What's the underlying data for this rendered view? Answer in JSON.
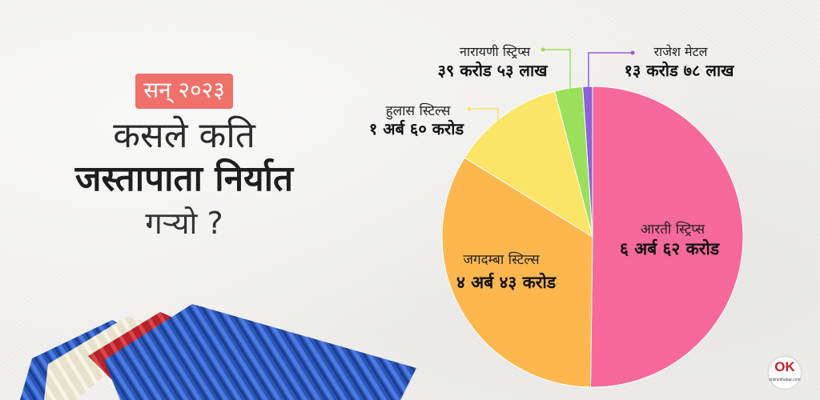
{
  "headline": {
    "badge": "सन् २०२३",
    "line1": "कसले कति",
    "line2": "जस्तापाता निर्यात",
    "line3": "गर्‍यो ?"
  },
  "brand": {
    "logo_text": "OK",
    "logo_subtext": "onlinekhabar.com"
  },
  "colors": {
    "aarati": "#f7689b",
    "jagadamba": "#fdb74e",
    "hulas": "#fbe567",
    "narayani": "#9be05a",
    "rajesh": "#8e62d6",
    "sheet_blue": "#2a56b8",
    "sheet_red": "#b5222a",
    "sheet_cream": "#e6e1cc"
  },
  "chart_data": {
    "type": "pie",
    "unit": "NPR",
    "series": [
      {
        "name": "आरती स्ट्रिप्स",
        "label": "६ अर्ब ६२ करोड",
        "value": 6620000000,
        "color": "#f7689b"
      },
      {
        "name": "जगदम्बा स्टिल्स",
        "label": "४ अर्ब ४३ करोड",
        "value": 4430000000,
        "color": "#fdb74e"
      },
      {
        "name": "हुलास स्टिल्स",
        "label": "१ अर्ब ६० करोड",
        "value": 1600000000,
        "color": "#fbe567"
      },
      {
        "name": "नारायणी स्ट्रिप्स",
        "label": "३९ करोड ५३ लाख",
        "value": 395300000,
        "color": "#9be05a"
      },
      {
        "name": "राजेश मेटल",
        "label": "१३ करोड ७८ लाख",
        "value": 137800000,
        "color": "#8e62d6"
      }
    ]
  }
}
